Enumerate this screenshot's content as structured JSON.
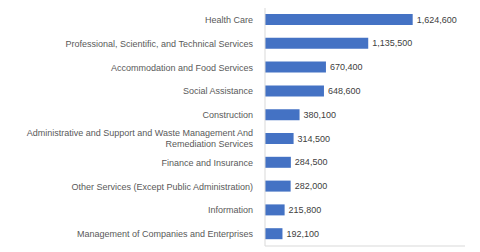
{
  "chart_data": {
    "type": "bar",
    "orientation": "horizontal",
    "categories": [
      "Health Care",
      "Professional, Scientific, and Technical Services",
      "Accommodation and Food Services",
      "Social Assistance",
      "Construction",
      "Administrative and Support and Waste Management And Remediation Services",
      "Finance and Insurance",
      "Other Services (Except Public Administration)",
      "Information",
      "Management of Companies and Enterprises"
    ],
    "values": [
      1624600,
      1135500,
      670400,
      648600,
      380100,
      314500,
      284500,
      282000,
      215800,
      192100
    ],
    "value_labels": [
      "1,624,600",
      "1,135,500",
      "670,400",
      "648,600",
      "380,100",
      "314,500",
      "284,500",
      "282,000",
      "215,800",
      "192,100"
    ],
    "data_labels": true,
    "color": "#4472c4",
    "xlim": [
      0,
      2200000
    ],
    "tick_labels": "y",
    "grid": false
  }
}
